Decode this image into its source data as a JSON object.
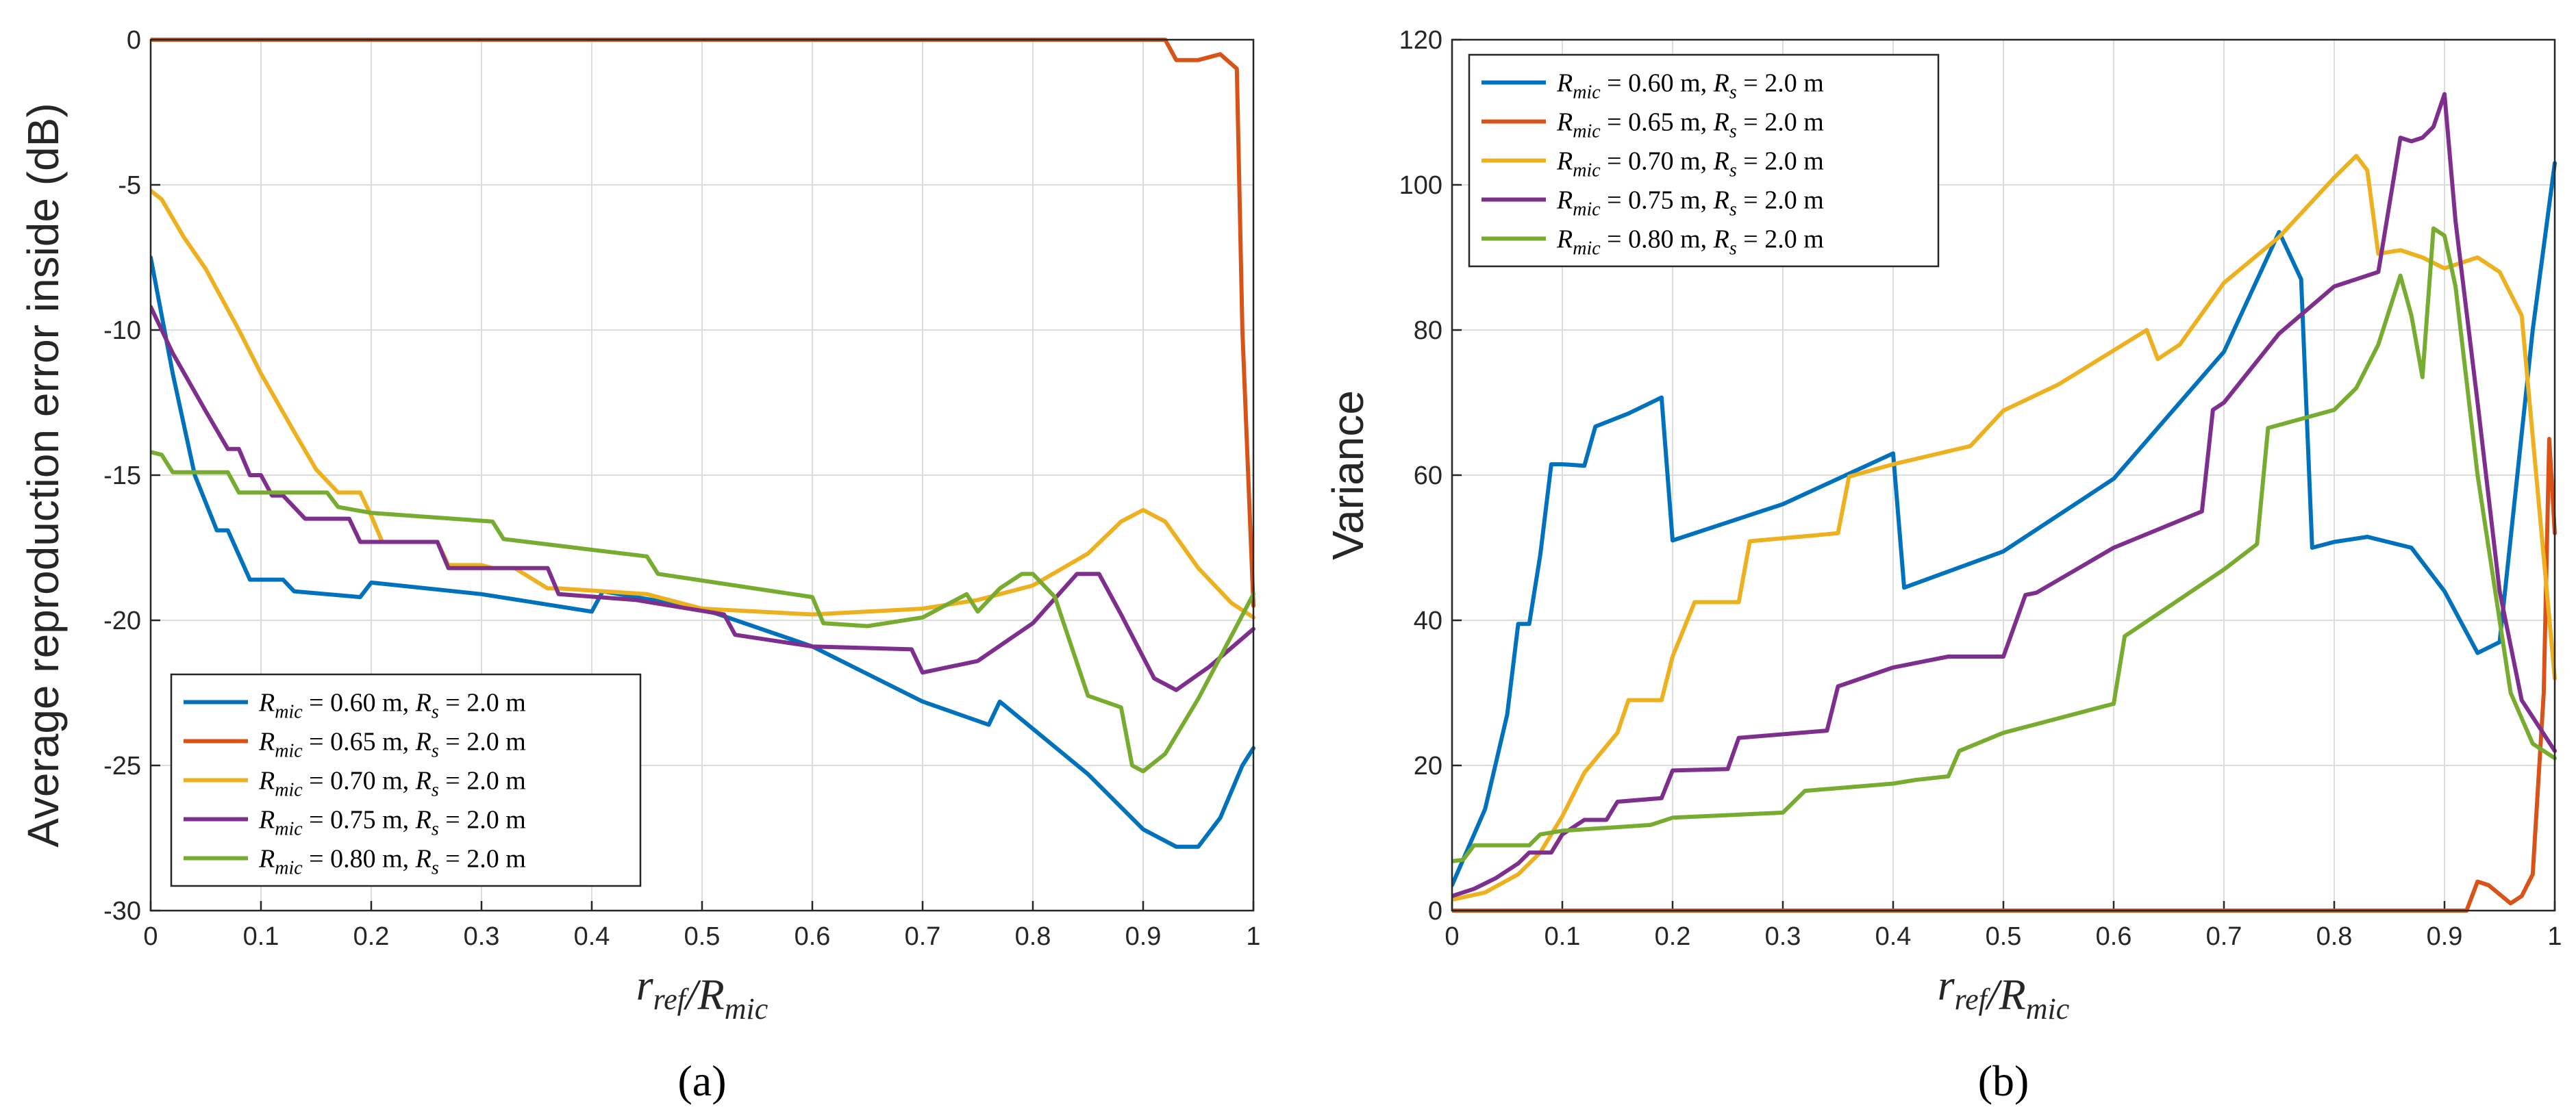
{
  "chart_data": [
    {
      "type": "line",
      "panel_label": "(a)",
      "xlabel": "r_ref/R_mic",
      "ylabel": "Average reproduction error inside (dB)",
      "xlim": [
        0,
        1
      ],
      "ylim": [
        -30,
        0
      ],
      "xticks": [
        "0",
        "0.1",
        "0.2",
        "0.3",
        "0.4",
        "0.5",
        "0.6",
        "0.7",
        "0.8",
        "0.9",
        "1"
      ],
      "yticks": [
        "0",
        "-5",
        "-10",
        "-15",
        "-20",
        "-25",
        "-30"
      ],
      "grid": true,
      "legend_position": "bottom-left",
      "series": [
        {
          "name": "R_mic = 0.60 m, R_s = 2.0 m",
          "legend_main": "R",
          "legend_sub": "mic",
          "legend_rest": "= 0.60 m, R",
          "legend_sub2": "s",
          "legend_end": "= 2.0 m",
          "color": "#0072BD",
          "x": [
            0,
            0.02,
            0.04,
            0.06,
            0.07,
            0.09,
            0.12,
            0.13,
            0.19,
            0.2,
            0.3,
            0.4,
            0.41,
            0.5,
            0.6,
            0.7,
            0.76,
            0.77,
            0.85,
            0.9,
            0.93,
            0.95,
            0.97,
            0.99,
            1.0
          ],
          "y": [
            -7.5,
            -11.5,
            -15,
            -16.9,
            -16.9,
            -18.6,
            -18.6,
            -19,
            -19.2,
            -18.7,
            -19.1,
            -19.7,
            -19,
            -19.6,
            -20.9,
            -22.8,
            -23.6,
            -22.8,
            -25.3,
            -27.2,
            -27.8,
            -27.8,
            -26.8,
            -25,
            -24.4
          ]
        },
        {
          "name": "R_mic = 0.65 m, R_s = 2.0 m",
          "legend_main": "R",
          "legend_sub": "mic",
          "legend_rest": "= 0.65 m, R",
          "legend_sub2": "s",
          "legend_end": "= 2.0 m",
          "color": "#D95319",
          "x": [
            0,
            0.5,
            0.92,
            0.93,
            0.95,
            0.97,
            0.985,
            0.99,
            1.0
          ],
          "y": [
            0,
            0,
            0,
            -0.7,
            -0.7,
            -0.5,
            -1.0,
            -10,
            -19.5
          ]
        },
        {
          "name": "R_mic = 0.70 m, R_s = 2.0 m",
          "legend_main": "R",
          "legend_sub": "mic",
          "legend_rest": "= 0.70 m, R",
          "legend_sub2": "s",
          "legend_end": "= 2.0 m",
          "color": "#EDB120",
          "x": [
            0,
            0.01,
            0.03,
            0.05,
            0.08,
            0.1,
            0.13,
            0.15,
            0.17,
            0.19,
            0.2,
            0.21,
            0.26,
            0.27,
            0.3,
            0.31,
            0.33,
            0.36,
            0.37,
            0.45,
            0.5,
            0.6,
            0.65,
            0.7,
            0.75,
            0.8,
            0.85,
            0.88,
            0.9,
            0.92,
            0.95,
            0.98,
            1.0
          ],
          "y": [
            -5.2,
            -5.5,
            -6.8,
            -7.9,
            -10,
            -11.5,
            -13.5,
            -14.8,
            -15.6,
            -15.6,
            -16.4,
            -17.3,
            -17.3,
            -18.1,
            -18.1,
            -18.2,
            -18.2,
            -18.9,
            -18.9,
            -19.1,
            -19.6,
            -19.8,
            -19.7,
            -19.6,
            -19.3,
            -18.8,
            -17.7,
            -16.6,
            -16.2,
            -16.6,
            -18.2,
            -19.4,
            -19.9
          ]
        },
        {
          "name": "R_mic = 0.75 m, R_s = 2.0 m",
          "legend_main": "R",
          "legend_sub": "mic",
          "legend_rest": "= 0.75 m, R",
          "legend_sub2": "s",
          "legend_end": "= 2.0 m",
          "color": "#7E2F8E",
          "x": [
            0,
            0.02,
            0.05,
            0.07,
            0.08,
            0.09,
            0.1,
            0.11,
            0.12,
            0.14,
            0.18,
            0.19,
            0.26,
            0.27,
            0.36,
            0.37,
            0.44,
            0.52,
            0.53,
            0.6,
            0.69,
            0.7,
            0.75,
            0.8,
            0.84,
            0.86,
            0.88,
            0.91,
            0.93,
            0.96,
            1.0
          ],
          "y": [
            -9.2,
            -10.8,
            -12.8,
            -14.1,
            -14.1,
            -15,
            -15,
            -15.7,
            -15.7,
            -16.5,
            -16.5,
            -17.3,
            -17.3,
            -18.2,
            -18.2,
            -19.1,
            -19.3,
            -19.8,
            -20.5,
            -20.9,
            -21,
            -21.8,
            -21.4,
            -20.1,
            -18.4,
            -18.4,
            -19.8,
            -22,
            -22.4,
            -21.6,
            -20.3
          ]
        },
        {
          "name": "R_mic = 0.80 m, R_s = 2.0 m",
          "legend_main": "R",
          "legend_sub": "mic",
          "legend_rest": "= 0.80 m, R",
          "legend_sub2": "s",
          "legend_end": "= 2.0 m",
          "color": "#77AC30",
          "x": [
            0,
            0.01,
            0.02,
            0.07,
            0.08,
            0.16,
            0.17,
            0.2,
            0.31,
            0.32,
            0.45,
            0.46,
            0.6,
            0.61,
            0.65,
            0.7,
            0.74,
            0.75,
            0.77,
            0.79,
            0.8,
            0.82,
            0.85,
            0.88,
            0.89,
            0.9,
            0.92,
            0.95,
            1.0
          ],
          "y": [
            -14.2,
            -14.3,
            -14.9,
            -14.9,
            -15.6,
            -15.6,
            -16.1,
            -16.3,
            -16.6,
            -17.2,
            -17.8,
            -18.4,
            -19.2,
            -20.1,
            -20.2,
            -19.9,
            -19.1,
            -19.7,
            -18.9,
            -18.4,
            -18.4,
            -19.2,
            -22.6,
            -23,
            -25,
            -25.2,
            -24.6,
            -22.7,
            -19.1
          ]
        }
      ]
    },
    {
      "type": "line",
      "panel_label": "(b)",
      "xlabel": "r_ref/R_mic",
      "ylabel": "Variance",
      "xlim": [
        0,
        1
      ],
      "ylim": [
        0,
        120
      ],
      "xticks": [
        "0",
        "0.1",
        "0.2",
        "0.3",
        "0.4",
        "0.5",
        "0.6",
        "0.7",
        "0.8",
        "0.9",
        "1"
      ],
      "yticks": [
        "0",
        "20",
        "40",
        "60",
        "80",
        "100",
        "120"
      ],
      "grid": true,
      "legend_position": "top-left",
      "series": [
        {
          "name": "R_mic = 0.60 m, R_s = 2.0 m",
          "legend_main": "R",
          "legend_sub": "mic",
          "legend_rest": "= 0.60 m, R",
          "legend_sub2": "s",
          "legend_end": "= 2.0 m",
          "color": "#0072BD",
          "x": [
            0,
            0.01,
            0.03,
            0.05,
            0.06,
            0.07,
            0.08,
            0.09,
            0.1,
            0.12,
            0.13,
            0.16,
            0.19,
            0.2,
            0.3,
            0.4,
            0.41,
            0.5,
            0.6,
            0.7,
            0.75,
            0.77,
            0.78,
            0.8,
            0.83,
            0.87,
            0.9,
            0.93,
            0.95,
            0.98,
            1.0
          ],
          "y": [
            3.5,
            7,
            14,
            27,
            39.5,
            39.5,
            49,
            61.5,
            61.5,
            61.3,
            66.7,
            68.5,
            70.7,
            51,
            56,
            63,
            44.5,
            49.5,
            59.5,
            77,
            93.5,
            87,
            50,
            50.8,
            51.5,
            50,
            44,
            35.5,
            37,
            80,
            103
          ]
        },
        {
          "name": "R_mic = 0.65 m, R_s = 2.0 m",
          "legend_main": "R",
          "legend_sub": "mic",
          "legend_rest": "= 0.65 m, R",
          "legend_sub2": "s",
          "legend_end": "= 2.0 m",
          "color": "#D95319",
          "x": [
            0,
            0.5,
            0.92,
            0.93,
            0.94,
            0.96,
            0.97,
            0.98,
            0.99,
            0.995,
            1.0
          ],
          "y": [
            0,
            0,
            0,
            4,
            3.5,
            1,
            2,
            5,
            30,
            65,
            52
          ]
        },
        {
          "name": "R_mic = 0.70 m, R_s = 2.0 m",
          "legend_main": "R",
          "legend_sub": "mic",
          "legend_rest": "= 0.70 m, R",
          "legend_sub2": "s",
          "legend_end": "= 2.0 m",
          "color": "#EDB120",
          "x": [
            0,
            0.03,
            0.06,
            0.08,
            0.1,
            0.12,
            0.15,
            0.16,
            0.19,
            0.2,
            0.22,
            0.26,
            0.27,
            0.35,
            0.36,
            0.4,
            0.47,
            0.5,
            0.55,
            0.63,
            0.64,
            0.66,
            0.7,
            0.75,
            0.8,
            0.82,
            0.83,
            0.84,
            0.86,
            0.88,
            0.9,
            0.93,
            0.95,
            0.97,
            1.0
          ],
          "y": [
            1.5,
            2.5,
            5,
            8,
            13,
            19,
            24.5,
            29,
            29,
            35,
            42.5,
            42.5,
            50.9,
            52,
            59.8,
            61.5,
            64,
            68.9,
            72.5,
            80,
            76,
            78,
            86.5,
            92.8,
            101,
            104,
            102,
            90.5,
            91,
            90,
            88.5,
            90,
            88,
            82,
            32
          ]
        },
        {
          "name": "R_mic = 0.75 m, R_s = 2.0 m",
          "legend_main": "R",
          "legend_sub": "mic",
          "legend_rest": "= 0.75 m, R",
          "legend_sub2": "s",
          "legend_end": "= 2.0 m",
          "color": "#7E2F8E",
          "x": [
            0,
            0.02,
            0.04,
            0.06,
            0.07,
            0.09,
            0.1,
            0.12,
            0.14,
            0.15,
            0.19,
            0.2,
            0.25,
            0.26,
            0.34,
            0.35,
            0.4,
            0.45,
            0.5,
            0.52,
            0.53,
            0.6,
            0.68,
            0.69,
            0.7,
            0.75,
            0.8,
            0.82,
            0.84,
            0.86,
            0.87,
            0.88,
            0.89,
            0.9,
            0.91,
            0.93,
            0.95,
            0.97,
            1.0
          ],
          "y": [
            2,
            3,
            4.5,
            6.5,
            8,
            8,
            10.5,
            12.5,
            12.5,
            15,
            15.5,
            19.3,
            19.5,
            23.8,
            24.8,
            30.9,
            33.5,
            35,
            35,
            43.5,
            43.8,
            50,
            55,
            69,
            70,
            79.5,
            86,
            87,
            88,
            106.5,
            106,
            106.5,
            108,
            112.5,
            95,
            70,
            44,
            29,
            22
          ]
        },
        {
          "name": "R_mic = 0.80 m, R_s = 2.0 m",
          "legend_main": "R",
          "legend_sub": "mic",
          "legend_rest": "= 0.80 m, R",
          "legend_sub2": "s",
          "legend_end": "= 2.0 m",
          "color": "#77AC30",
          "x": [
            0,
            0.01,
            0.02,
            0.07,
            0.08,
            0.1,
            0.18,
            0.2,
            0.3,
            0.32,
            0.4,
            0.42,
            0.45,
            0.46,
            0.5,
            0.55,
            0.6,
            0.61,
            0.7,
            0.73,
            0.74,
            0.8,
            0.82,
            0.84,
            0.86,
            0.87,
            0.88,
            0.89,
            0.9,
            0.91,
            0.93,
            0.96,
            0.98,
            1.0
          ],
          "y": [
            6.8,
            7,
            9,
            9,
            10.5,
            11,
            11.8,
            12.8,
            13.5,
            16.5,
            17.5,
            18,
            18.5,
            22,
            24.5,
            26.5,
            28.5,
            37.8,
            47,
            50.5,
            66.5,
            69,
            72,
            78,
            87.5,
            82,
            73.5,
            94,
            93,
            86,
            60,
            30,
            23,
            21
          ]
        }
      ]
    }
  ]
}
